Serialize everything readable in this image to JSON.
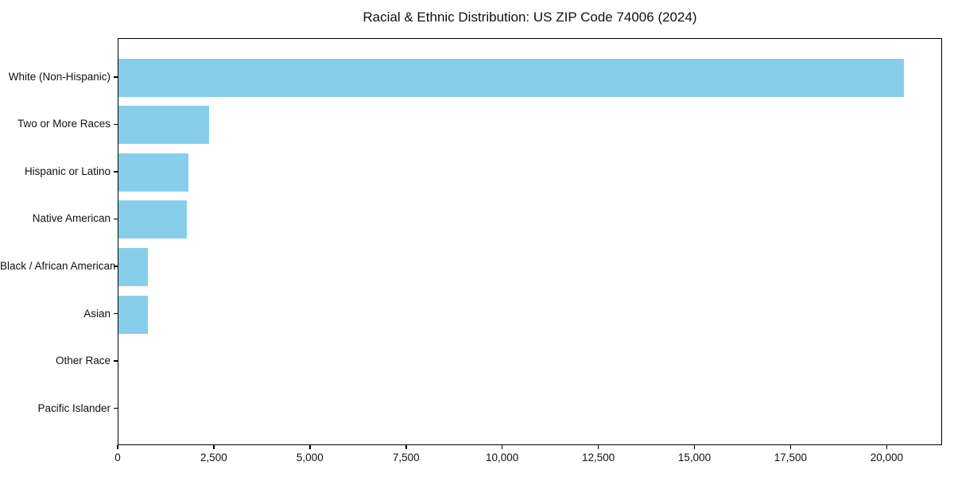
{
  "chart_data": {
    "type": "bar",
    "orientation": "horizontal",
    "title": "Racial & Ethnic Distribution: US ZIP Code 74006 (2024)",
    "categories": [
      "White (Non-Hispanic)",
      "Two or More Races",
      "Hispanic or Latino",
      "Native American",
      "Black / African American",
      "Asian",
      "Other Race",
      "Pacific Islander"
    ],
    "values": [
      20430,
      2360,
      1825,
      1785,
      770,
      760,
      0,
      0
    ],
    "xlabel": "",
    "ylabel": "",
    "xlim": [
      0,
      21440
    ],
    "xticks": [
      0,
      2500,
      5000,
      7500,
      10000,
      12500,
      15000,
      17500,
      20000
    ],
    "grid": false,
    "legend": null,
    "bar_color": "#87CEEB",
    "text_color": "#111111",
    "spine_color": "#000000"
  }
}
